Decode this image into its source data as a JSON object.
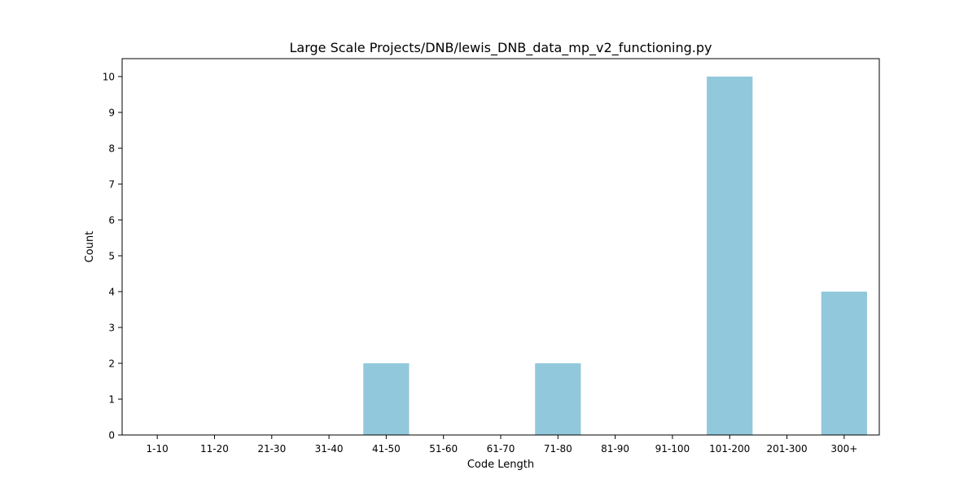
{
  "chart_data": {
    "type": "bar",
    "title": "Large Scale Projects/DNB/lewis_DNB_data_mp_v2_functioning.py",
    "xlabel": "Code Length",
    "ylabel": "Count",
    "categories": [
      "1-10",
      "11-20",
      "21-30",
      "31-40",
      "41-50",
      "51-60",
      "61-70",
      "71-80",
      "81-90",
      "91-100",
      "101-200",
      "201-300",
      "300+"
    ],
    "values": [
      0,
      0,
      0,
      0,
      2,
      0,
      0,
      2,
      0,
      0,
      10,
      0,
      4
    ],
    "yticks": [
      0,
      1,
      2,
      3,
      4,
      5,
      6,
      7,
      8,
      9,
      10
    ],
    "ylim": [
      0,
      10.5
    ],
    "grid": false,
    "bar_color": "#92c8dc"
  }
}
